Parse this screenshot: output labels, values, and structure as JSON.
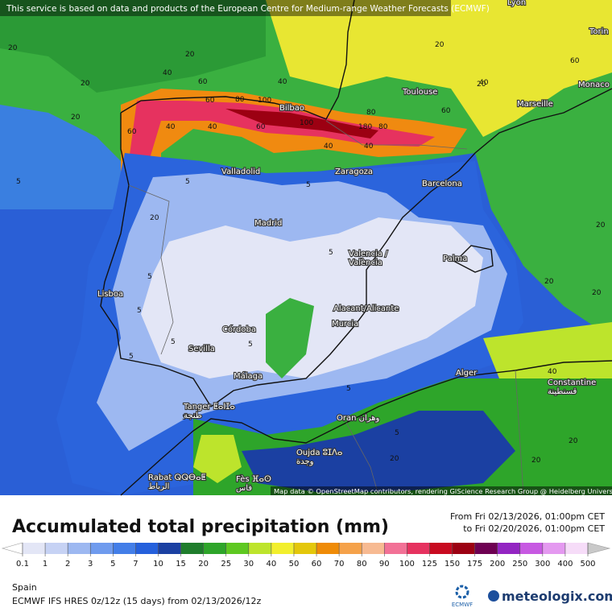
{
  "header": {
    "notice": "This service is based on data and products of the European Centre for Medium-range Weather Forecasts (ECMWF)"
  },
  "map": {
    "attribution": "Map data © OpenStreetMap contributors, rendering GIScience Research Group @ Heidelberg University",
    "cities": [
      "Lyon",
      "Torin",
      "Monaco",
      "Toulouse",
      "Marseille",
      "Bilbao",
      "Valladolid",
      "Zaragoza",
      "Barcelona",
      "Madrid",
      "Valencia /\nValència",
      "Palma",
      "Lisboa",
      "Alacant/Alicante",
      "Murcia",
      "Córdoba",
      "Sevilla",
      "Málaga",
      "Tanger ⵟⴰⵏⵊⴰ\nطنجة",
      "Oran وهران",
      "Alger",
      "Constantine\nقسنطينة",
      "Oujda ⵓⵊⴷⴰ\nوجدة",
      "Rabat ⵕⵕⴱⴰⵟ\nالرباط",
      "Fès ⴼⴰⵙ\nفاس"
    ],
    "contour_labels": [
      "20",
      "20",
      "20",
      "40",
      "60",
      "40",
      "60",
      "80",
      "100",
      "80",
      "40",
      "60",
      "100",
      "80",
      "180",
      "60",
      "40",
      "40",
      "40",
      "60",
      "20",
      "20",
      "40",
      "60",
      "20",
      "20",
      "5",
      "5",
      "5",
      "5",
      "5",
      "5",
      "5",
      "5",
      "5",
      "5",
      "5",
      "20",
      "20",
      "20",
      "40",
      "20",
      "20",
      "5",
      "20"
    ]
  },
  "panel": {
    "title": "Accumulated total precipitation (mm)",
    "from": "From Fri 02/13/2026, 01:00pm CET",
    "to": "to Fri 02/20/2026, 01:00pm CET",
    "region": "Spain",
    "model": "ECMWF IFS HRES 0z/12z (15 days) from  02/13/2026/12z",
    "logo_ecmwf": "ECMWF",
    "logo_site": "meteologix.com"
  },
  "legend": {
    "values": [
      0.1,
      1,
      2,
      3,
      5,
      7,
      10,
      15,
      20,
      25,
      30,
      40,
      50,
      60,
      70,
      80,
      90,
      100,
      125,
      150,
      175,
      200,
      250,
      300,
      400,
      500
    ],
    "colors": [
      "#ffffff",
      "#e3e6f6",
      "#c6d2f4",
      "#9db8f1",
      "#6f9bee",
      "#437ee8",
      "#2560dc",
      "#1b40a2",
      "#1f7d2c",
      "#2ea52a",
      "#5ec821",
      "#bde42c",
      "#f2ef2d",
      "#e4c70b",
      "#ef8b07",
      "#f5a24a",
      "#f7ba92",
      "#f27196",
      "#e6325f",
      "#c80a20",
      "#9c0012",
      "#6e0052",
      "#9325c2",
      "#c759e2",
      "#e499f0",
      "#f6dcf8",
      "#c9c9c9"
    ]
  }
}
